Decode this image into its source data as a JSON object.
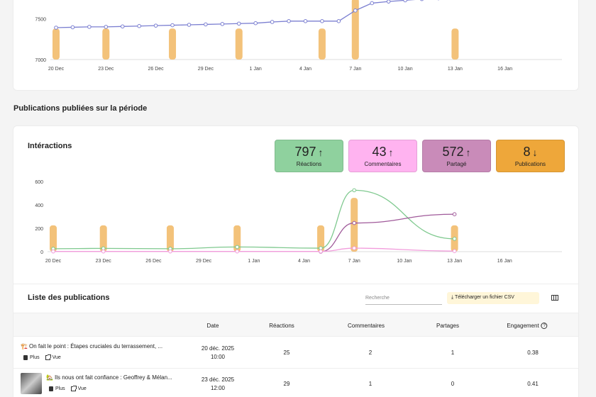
{
  "chart_data": [
    {
      "type": "line",
      "y_ticks": [
        "7000",
        "7500"
      ],
      "ylim": [
        7000,
        7850
      ],
      "x_ticks": [
        "20 Dec",
        "23 Dec",
        "26 Dec",
        "29 Dec",
        "1 Jan",
        "4 Jan",
        "7 Jan",
        "10 Jan",
        "13 Jan",
        "16 Jan"
      ],
      "series": [
        {
          "color": "#7b7fd1",
          "values": [
            7390,
            7395,
            7400,
            7400,
            7405,
            7410,
            7415,
            7420,
            7425,
            7430,
            7435,
            7440,
            7445,
            7460,
            7470,
            7470,
            7470,
            7470,
            7600,
            7690,
            7710,
            7725,
            7740,
            7750,
            7760,
            7765,
            7770,
            7780,
            7785,
            7790,
            7800
          ]
        },
        {
          "color": "#f3c27a",
          "type": "bar",
          "positions": [
            0,
            3,
            7,
            11,
            16,
            18,
            24
          ],
          "values": [
            7380,
            7380,
            7380,
            7380,
            7380,
            7750,
            7380
          ]
        }
      ],
      "grid": false
    },
    {
      "type": "line",
      "y_ticks": [
        "0",
        "200",
        "400",
        "600"
      ],
      "ylim": [
        0,
        600
      ],
      "x_ticks": [
        "20 Dec",
        "23 Dec",
        "26 Dec",
        "29 Dec",
        "1 Jan",
        "4 Jan",
        "7 Jan",
        "10 Jan",
        "13 Jan",
        "16 Jan"
      ],
      "series": [
        {
          "color": "#7fc98f",
          "positions": [
            0,
            3,
            7,
            11,
            16,
            18,
            24
          ],
          "values": [
            25,
            28,
            25,
            40,
            30,
            525,
            110
          ]
        },
        {
          "color": "#a05a9a",
          "positions": [
            16,
            18,
            24
          ],
          "values": [
            0,
            245,
            320
          ]
        },
        {
          "color": "#f29cdc",
          "positions": [
            0,
            3,
            7,
            11,
            16,
            18,
            24
          ],
          "values": [
            2,
            2,
            2,
            2,
            2,
            30,
            5
          ]
        },
        {
          "color": "#f3c27a",
          "type": "bar",
          "positions": [
            0,
            3,
            7,
            11,
            16,
            18,
            24
          ],
          "values": [
            225,
            225,
            225,
            225,
            225,
            460,
            225
          ]
        }
      ],
      "grid": false
    }
  ],
  "section_title": "Publications publiées sur la période",
  "interactions": {
    "title": "Intéractions",
    "stats": [
      {
        "value": "797",
        "arrow": "↑",
        "label": "Réactions",
        "color": "#8fd19e"
      },
      {
        "value": "43",
        "arrow": "↑",
        "label": "Commentaires",
        "color": "#ffb3f0"
      },
      {
        "value": "572",
        "arrow": "↑",
        "label": "Partagé",
        "color": "#c98bb9"
      },
      {
        "value": "8",
        "arrow": "↓",
        "label": "Publications",
        "color": "#eea73a"
      }
    ]
  },
  "list": {
    "title": "Liste des publications",
    "search_placeholder": "Recherche",
    "csv_button": "Télécharger un fichier CSV",
    "columns": [
      "Date",
      "Réactions",
      "Commentaires",
      "Partages",
      "Engagement"
    ],
    "rows": [
      {
        "emoji": "🏗️",
        "title": "On fait le point : Étapes cruciales du terrassement, ...",
        "date": "20 déc. 2025",
        "time": "10:00",
        "reactions": "25",
        "comments": "2",
        "shares": "1",
        "engagement": "0.38",
        "more": "Plus",
        "view": "Vue"
      },
      {
        "emoji": "🏡",
        "title": "Ils nous ont fait confiance : Geoffrey & Mélan...",
        "date": "23 déc. 2025",
        "time": "12:00",
        "reactions": "29",
        "comments": "1",
        "shares": "0",
        "engagement": "0.41",
        "more": "Plus",
        "view": "Vue"
      }
    ]
  }
}
